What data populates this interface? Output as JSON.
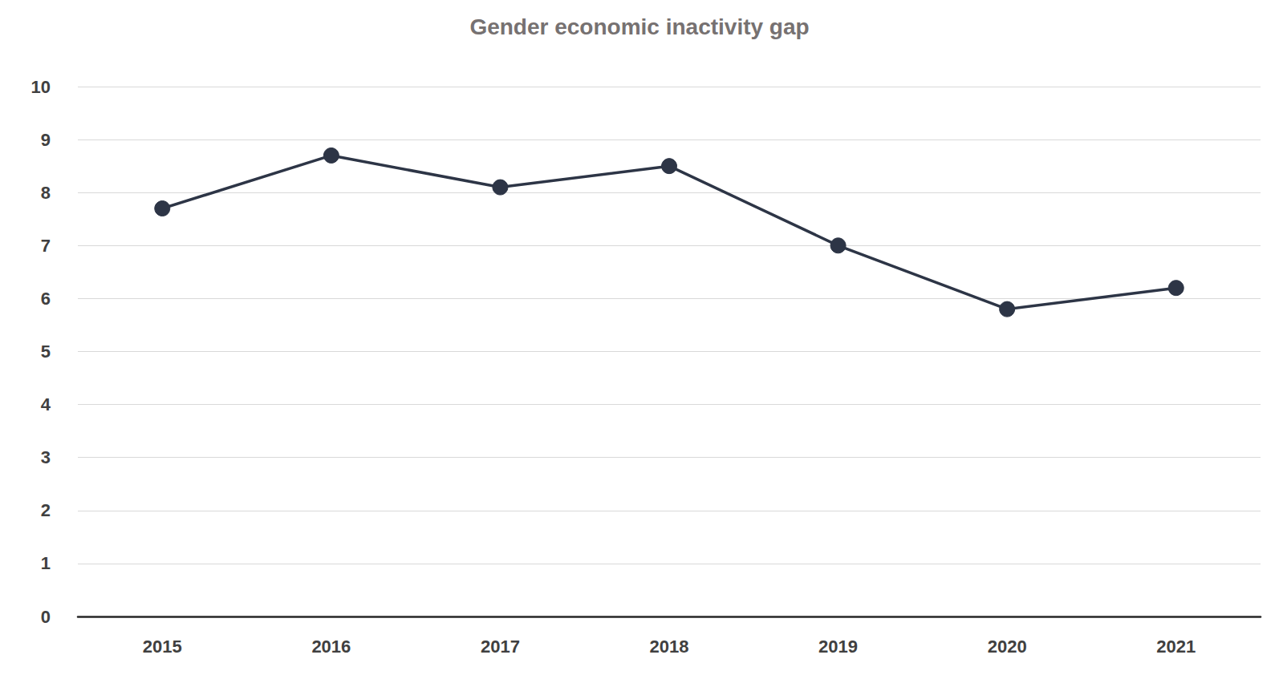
{
  "chart_data": {
    "type": "line",
    "title": "Gender economic inactivity gap",
    "categories": [
      "2015",
      "2016",
      "2017",
      "2018",
      "2019",
      "2020",
      "2021"
    ],
    "values": [
      7.7,
      8.7,
      8.1,
      8.5,
      7.0,
      5.8,
      6.2
    ],
    "color": "#2d3546",
    "marker": "circle",
    "ylim": [
      0,
      10
    ],
    "yticks": [
      0,
      1,
      2,
      3,
      4,
      5,
      6,
      7,
      8,
      9,
      10
    ],
    "grid": true
  }
}
